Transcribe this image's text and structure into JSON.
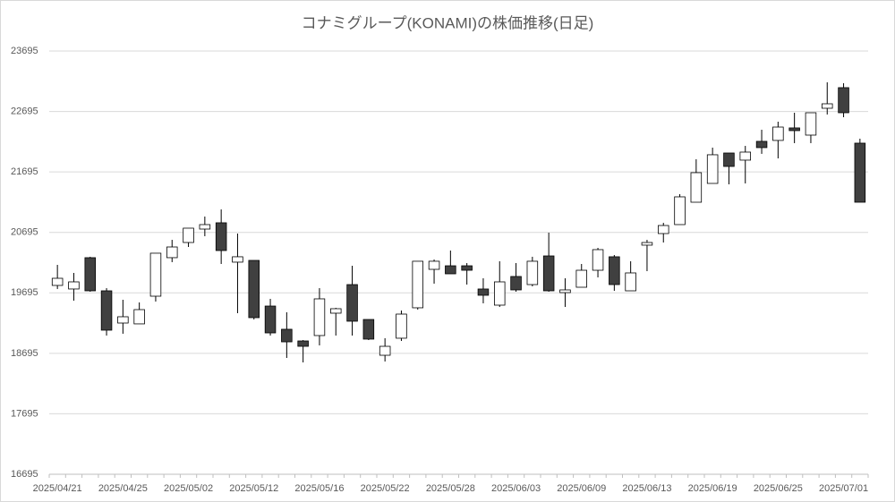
{
  "chart_data": {
    "type": "candlestick",
    "title": "コナミグループ(KONAMI)の株価推移(日足)",
    "categories": [
      "2025/04/21",
      null,
      null,
      null,
      "2025/04/25",
      null,
      null,
      null,
      "2025/05/02",
      null,
      null,
      null,
      "2025/05/12",
      null,
      null,
      null,
      "2025/05/16",
      null,
      null,
      null,
      "2025/05/22",
      null,
      null,
      null,
      "2025/05/28",
      null,
      null,
      null,
      "2025/06/03",
      null,
      null,
      null,
      "2025/06/09",
      null,
      null,
      null,
      "2025/06/13",
      null,
      null,
      null,
      "2025/06/19",
      null,
      null,
      null,
      "2025/06/25",
      null,
      null,
      null,
      "2025/07/01",
      null
    ],
    "open": [
      19818,
      19759,
      20277,
      19729,
      19196,
      19182,
      19640,
      20277,
      20528,
      20750,
      20854,
      20203,
      20232,
      19477,
      19093,
      18900,
      18989,
      19359,
      19832,
      19255,
      18663,
      18945,
      19448,
      20084,
      20143,
      20143,
      19759,
      19492,
      19966,
      19832,
      20306,
      19699,
      19788,
      20069,
      20292,
      19729,
      20484,
      20676,
      20824,
      21194,
      21505,
      22008,
      21890,
      22201,
      22216,
      22423,
      22304,
      22748,
      23089,
      22171
    ],
    "high": [
      20158,
      20025,
      20292,
      19773,
      19581,
      19537,
      20351,
      20572,
      20765,
      20957,
      21075,
      20676,
      20232,
      19596,
      19374,
      18915,
      19773,
      19448,
      20143,
      19255,
      18945,
      19403,
      20218,
      20247,
      20395,
      20188,
      19936,
      20218,
      20188,
      20292,
      20691,
      19936,
      20173,
      20439,
      20321,
      20218,
      20572,
      20854,
      21327,
      21905,
      22097,
      22008,
      22126,
      22393,
      22526,
      22674,
      22674,
      23177,
      23162,
      22245
    ],
    "low": [
      19759,
      19566,
      19714,
      18989,
      19019,
      19182,
      19551,
      20203,
      20454,
      20632,
      20173,
      19359,
      19255,
      18989,
      18619,
      18545,
      18826,
      18989,
      18989,
      18915,
      18560,
      18900,
      19418,
      19847,
      20010,
      19832,
      19522,
      19462,
      19714,
      19803,
      19714,
      19462,
      19788,
      19951,
      19729,
      19729,
      20054,
      20528,
      20824,
      21194,
      21505,
      21490,
      21505,
      21994,
      21919,
      22171,
      22171,
      22645,
      22600,
      21194
    ],
    "close": [
      19936,
      19877,
      19729,
      19078,
      19300,
      19418,
      20351,
      20454,
      20765,
      20824,
      20395,
      20292,
      19285,
      19033,
      18885,
      18811,
      19596,
      19433,
      19226,
      18930,
      18811,
      19344,
      20218,
      20218,
      20010,
      20069,
      19655,
      19877,
      19744,
      20218,
      19729,
      19744,
      20069,
      20410,
      19832,
      20025,
      20528,
      20809,
      21283,
      21683,
      21979,
      21786,
      22023,
      22097,
      22437,
      22378,
      22674,
      22822,
      22674,
      21194
    ],
    "up_color": "#ffffff",
    "down_color": "#404040",
    "edge_color": "#000000",
    "ylim": [
      16695,
      23695
    ],
    "yticks": [
      16695,
      17695,
      18695,
      19695,
      20695,
      21695,
      22695,
      23695
    ],
    "grid": true
  }
}
